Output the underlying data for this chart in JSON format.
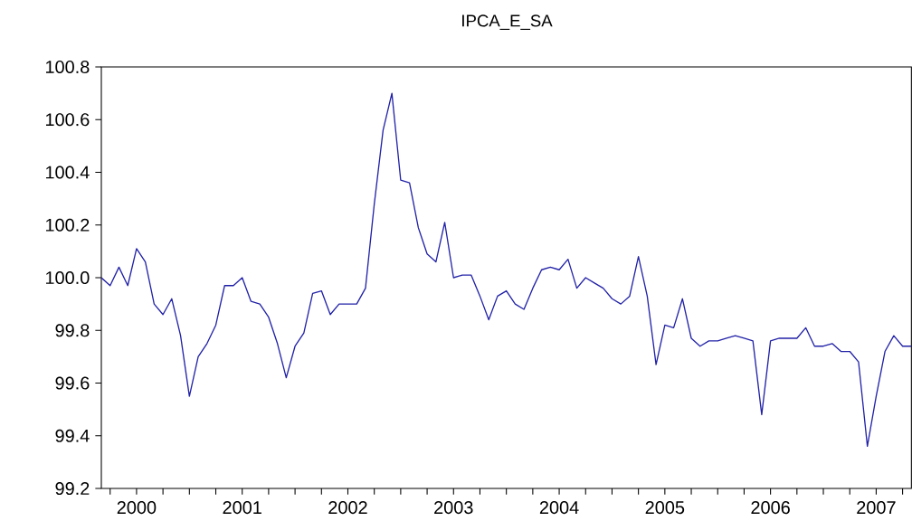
{
  "chart_data": {
    "type": "line",
    "title": "IPCA_E_SA",
    "x": [
      "2000-03",
      "2000-04",
      "2000-05",
      "2000-06",
      "2000-07",
      "2000-08",
      "2000-09",
      "2000-10",
      "2000-11",
      "2000-12",
      "2001-01",
      "2001-02",
      "2001-03",
      "2001-04",
      "2001-05",
      "2001-06",
      "2001-07",
      "2001-08",
      "2001-09",
      "2001-10",
      "2001-11",
      "2001-12",
      "2002-01",
      "2002-02",
      "2002-03",
      "2002-04",
      "2002-05",
      "2002-06",
      "2002-07",
      "2002-08",
      "2002-09",
      "2002-10",
      "2002-11",
      "2002-12",
      "2003-01",
      "2003-02",
      "2003-03",
      "2003-04",
      "2003-05",
      "2003-06",
      "2003-07",
      "2003-08",
      "2003-09",
      "2003-10",
      "2003-11",
      "2003-12",
      "2004-01",
      "2004-02",
      "2004-03",
      "2004-04",
      "2004-05",
      "2004-06",
      "2004-07",
      "2004-08",
      "2004-09",
      "2004-10",
      "2004-11",
      "2004-12",
      "2005-01",
      "2005-02",
      "2005-03",
      "2005-04",
      "2005-05",
      "2005-06",
      "2005-07",
      "2005-08",
      "2005-09",
      "2005-10",
      "2005-11",
      "2005-12",
      "2006-01",
      "2006-02",
      "2006-03",
      "2006-04",
      "2006-05",
      "2006-06",
      "2006-07",
      "2006-08",
      "2006-09",
      "2006-10",
      "2006-11",
      "2006-12",
      "2007-01",
      "2007-02",
      "2007-03",
      "2007-04",
      "2007-05",
      "2007-06",
      "2007-07",
      "2007-08",
      "2007-09",
      "2007-10",
      "2007-11"
    ],
    "series": [
      {
        "color": "#2222a8",
        "values": [
          100.0,
          99.97,
          100.04,
          99.97,
          100.11,
          100.06,
          99.9,
          99.86,
          99.92,
          99.78,
          99.55,
          99.7,
          99.75,
          99.82,
          99.97,
          99.97,
          100.0,
          99.91,
          99.9,
          99.85,
          99.75,
          99.62,
          99.74,
          99.79,
          99.94,
          99.95,
          99.86,
          99.9,
          99.9,
          99.9,
          99.96,
          100.28,
          100.56,
          100.7,
          100.37,
          100.36,
          100.19,
          100.09,
          100.06,
          100.21,
          100.0,
          100.01,
          100.01,
          99.93,
          99.84,
          99.93,
          99.95,
          99.9,
          99.88,
          99.96,
          100.03,
          100.04,
          100.03,
          100.07,
          99.96,
          100.0,
          99.98,
          99.96,
          99.92,
          99.9,
          99.93,
          100.08,
          99.93,
          99.67,
          99.82,
          99.81,
          99.92,
          99.77,
          99.74,
          99.76,
          99.76,
          99.77,
          99.78,
          99.77,
          99.76,
          99.48,
          99.76,
          99.77,
          99.77,
          99.77,
          99.81,
          99.74,
          99.74,
          99.75,
          99.72,
          99.72,
          99.68,
          99.36,
          99.55,
          99.72,
          99.78,
          99.74,
          99.74
        ]
      }
    ],
    "xlim": [
      "2000-03",
      "2007-11"
    ],
    "xticks": [
      {
        "value": "2000-04",
        "label": null
      },
      {
        "value": "2000-07",
        "label": "2000"
      },
      {
        "value": "2000-10",
        "label": null
      },
      {
        "value": "2001-01",
        "label": null
      },
      {
        "value": "2001-04",
        "label": null
      },
      {
        "value": "2001-07",
        "label": "2001"
      },
      {
        "value": "2001-10",
        "label": null
      },
      {
        "value": "2002-01",
        "label": null
      },
      {
        "value": "2002-04",
        "label": null
      },
      {
        "value": "2002-07",
        "label": "2002"
      },
      {
        "value": "2002-10",
        "label": null
      },
      {
        "value": "2003-01",
        "label": null
      },
      {
        "value": "2003-04",
        "label": null
      },
      {
        "value": "2003-07",
        "label": "2003"
      },
      {
        "value": "2003-10",
        "label": null
      },
      {
        "value": "2004-01",
        "label": null
      },
      {
        "value": "2004-04",
        "label": null
      },
      {
        "value": "2004-07",
        "label": "2004"
      },
      {
        "value": "2004-10",
        "label": null
      },
      {
        "value": "2005-01",
        "label": null
      },
      {
        "value": "2005-04",
        "label": null
      },
      {
        "value": "2005-07",
        "label": "2005"
      },
      {
        "value": "2005-10",
        "label": null
      },
      {
        "value": "2006-01",
        "label": null
      },
      {
        "value": "2006-04",
        "label": null
      },
      {
        "value": "2006-07",
        "label": "2006"
      },
      {
        "value": "2006-10",
        "label": null
      },
      {
        "value": "2007-01",
        "label": null
      },
      {
        "value": "2007-04",
        "label": null
      },
      {
        "value": "2007-07",
        "label": "2007"
      },
      {
        "value": "2007-10",
        "label": null
      }
    ],
    "ylim": [
      99.2,
      100.8
    ],
    "yticks": [
      99.2,
      99.4,
      99.6,
      99.8,
      {
        "value": 100.0,
        "label": "100.0"
      },
      100.2,
      100.4,
      100.6,
      100.8
    ],
    "grid": false,
    "legend": false,
    "marker": "none",
    "line_style": "solid"
  }
}
